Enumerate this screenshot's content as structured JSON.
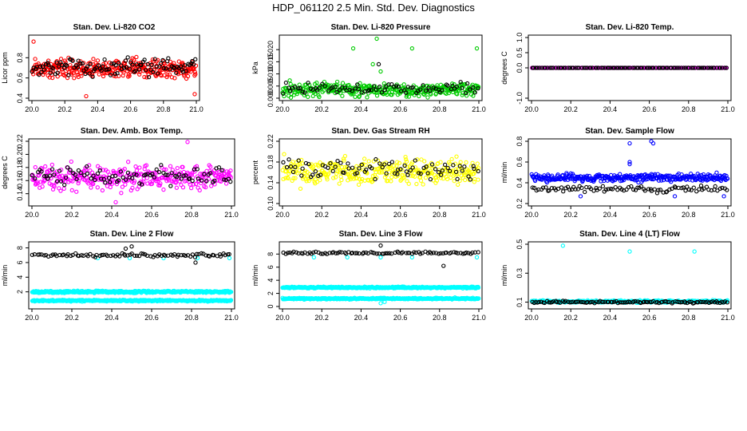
{
  "title": "HDP_061120  2.5 Min. Std. Dev. Diagnostics",
  "chart_data": [
    {
      "type": "scatter",
      "title": "Stan. Dev. Li-820 CO2",
      "ylabel": "Licor ppm",
      "xlim": [
        20.0,
        21.0
      ],
      "ylim": [
        0.4,
        1.0
      ],
      "x_ticks": [
        "20.0",
        "20.2",
        "20.4",
        "20.6",
        "20.8",
        "21.0"
      ],
      "y_ticks": [
        {
          "v": 0.4,
          "label": "0.4"
        },
        {
          "v": 0.6,
          "label": "0.6"
        },
        {
          "v": 0.8,
          "label": "0.8"
        }
      ],
      "series": [
        {
          "name": "red",
          "color": "#ff0000",
          "center": 0.69,
          "spread": 0.1,
          "n": 340,
          "seed": 11,
          "outliers": [
            [
              20.01,
              0.96
            ],
            [
              20.33,
              0.42
            ],
            [
              20.99,
              0.44
            ]
          ]
        },
        {
          "name": "black",
          "color": "#000000",
          "center": 0.72,
          "spread": 0.09,
          "n": 110,
          "seed": 12,
          "outliers": []
        }
      ]
    },
    {
      "type": "scatter",
      "title": "Stan. Dev. Li-820 Pressure",
      "ylabel": "kPa",
      "xlim": [
        20.0,
        21.0
      ],
      "ylim": [
        0.0,
        0.025
      ],
      "x_ticks": [
        "20.0",
        "20.2",
        "20.4",
        "20.6",
        "20.8",
        "21.0"
      ],
      "y_ticks": [
        {
          "v": 0.0,
          "label": "0.000"
        },
        {
          "v": 0.005,
          "label": "0.005"
        },
        {
          "v": 0.01,
          "label": "0.010"
        },
        {
          "v": 0.015,
          "label": "0.015"
        },
        {
          "v": 0.02,
          "label": "0.020"
        }
      ],
      "series": [
        {
          "name": "green",
          "color": "#00cc00",
          "center": 0.0035,
          "spread": 0.003,
          "n": 330,
          "seed": 21,
          "outliers": [
            [
              20.36,
              0.0205
            ],
            [
              20.48,
              0.0245
            ],
            [
              20.66,
              0.0205
            ],
            [
              20.99,
              0.0205
            ],
            [
              20.46,
              0.014
            ],
            [
              20.5,
              0.011
            ]
          ]
        },
        {
          "name": "black",
          "color": "#000000",
          "center": 0.004,
          "spread": 0.0025,
          "n": 80,
          "seed": 22,
          "outliers": [
            [
              20.49,
              0.014
            ]
          ]
        }
      ]
    },
    {
      "type": "scatter",
      "title": "Stan. Dev. Li-820 Temp.",
      "ylabel": "degrees C",
      "xlim": [
        20.0,
        21.0
      ],
      "ylim": [
        -1.0,
        1.0
      ],
      "x_ticks": [
        "20.0",
        "20.2",
        "20.4",
        "20.6",
        "20.8",
        "21.0"
      ],
      "y_ticks": [
        {
          "v": -1.0,
          "label": "-1.0"
        },
        {
          "v": 0.0,
          "label": "0.0"
        },
        {
          "v": 0.5,
          "label": "0.5"
        },
        {
          "v": 1.0,
          "label": "1.0"
        }
      ],
      "series": [
        {
          "name": "magenta",
          "color": "#ff00ff",
          "center": 0.0,
          "spread": 0.0,
          "n": 150,
          "seed": 31,
          "outliers": []
        },
        {
          "name": "black",
          "color": "#000000",
          "center": 0.0,
          "spread": 0.0,
          "n": 100,
          "seed": 32,
          "outliers": []
        }
      ]
    },
    {
      "type": "scatter",
      "title": "Stan. Dev. Amb. Box Temp.",
      "ylabel": "degrees C",
      "xlim": [
        20.0,
        21.0
      ],
      "ylim": [
        0.125,
        0.22
      ],
      "x_ticks": [
        "20.0",
        "20.2",
        "20.4",
        "20.6",
        "20.8",
        "21.0"
      ],
      "y_ticks": [
        {
          "v": 0.14,
          "label": "0.14"
        },
        {
          "v": 0.16,
          "label": "0.16"
        },
        {
          "v": 0.18,
          "label": "0.18"
        },
        {
          "v": 0.2,
          "label": "0.20"
        },
        {
          "v": 0.22,
          "label": "0.22"
        }
      ],
      "series": [
        {
          "name": "magenta",
          "color": "#ff00ff",
          "center": 0.165,
          "spread": 0.02,
          "n": 330,
          "seed": 41,
          "outliers": [
            [
              20.78,
              0.219
            ],
            [
              20.42,
              0.127
            ]
          ]
        },
        {
          "name": "black",
          "color": "#000000",
          "center": 0.168,
          "spread": 0.017,
          "n": 90,
          "seed": 42,
          "outliers": []
        }
      ]
    },
    {
      "type": "scatter",
      "title": "Stan. Dev. Gas Stream RH",
      "ylabel": "percent",
      "xlim": [
        20.0,
        21.0
      ],
      "ylim": [
        0.1,
        0.22
      ],
      "x_ticks": [
        "20.0",
        "20.2",
        "20.4",
        "20.6",
        "20.8",
        "21.0"
      ],
      "y_ticks": [
        {
          "v": 0.1,
          "label": "0.10"
        },
        {
          "v": 0.14,
          "label": "0.14"
        },
        {
          "v": 0.18,
          "label": "0.18"
        },
        {
          "v": 0.22,
          "label": "0.22"
        }
      ],
      "series": [
        {
          "name": "yellow",
          "color": "#ffff00",
          "center": 0.162,
          "spread": 0.025,
          "n": 330,
          "seed": 51,
          "outliers": []
        },
        {
          "name": "black",
          "color": "#000000",
          "center": 0.168,
          "spread": 0.02,
          "n": 80,
          "seed": 52,
          "outliers": []
        }
      ]
    },
    {
      "type": "scatter",
      "title": "Stan. Dev. Sample Flow",
      "ylabel": "ml/min",
      "xlim": [
        20.0,
        21.0
      ],
      "ylim": [
        0.2,
        0.8
      ],
      "x_ticks": [
        "20.0",
        "20.2",
        "20.4",
        "20.6",
        "20.8",
        "21.0"
      ],
      "y_ticks": [
        {
          "v": 0.2,
          "label": "0.2"
        },
        {
          "v": 0.4,
          "label": "0.4"
        },
        {
          "v": 0.6,
          "label": "0.6"
        },
        {
          "v": 0.8,
          "label": "0.8"
        }
      ],
      "series": [
        {
          "name": "blue",
          "color": "#0000ff",
          "center": 0.45,
          "spread": 0.04,
          "n": 330,
          "seed": 61,
          "outliers": [
            [
              20.5,
              0.78
            ],
            [
              20.62,
              0.78
            ],
            [
              20.61,
              0.8
            ],
            [
              20.25,
              0.27
            ],
            [
              20.73,
              0.27
            ],
            [
              20.98,
              0.27
            ],
            [
              20.5,
              0.6
            ],
            [
              20.5,
              0.58
            ]
          ]
        },
        {
          "name": "black",
          "color": "#000000",
          "center": 0.34,
          "spread": 0.03,
          "n": 90,
          "seed": 62,
          "outliers": []
        }
      ]
    },
    {
      "type": "scatter",
      "title": "Stan. Dev. Line 2 Flow",
      "ylabel": "ml/min",
      "xlim": [
        20.0,
        21.0
      ],
      "ylim": [
        0.0,
        8.5
      ],
      "x_ticks": [
        "20.0",
        "20.2",
        "20.4",
        "20.6",
        "20.8",
        "21.0"
      ],
      "y_ticks": [
        {
          "v": 2,
          "label": "2"
        },
        {
          "v": 4,
          "label": "4"
        },
        {
          "v": 6,
          "label": "6"
        },
        {
          "v": 8,
          "label": "8"
        }
      ],
      "series": [
        {
          "name": "cyan-high",
          "color": "#00ffff",
          "center": 2.0,
          "spread": 0.15,
          "n": 400,
          "seed": 71,
          "outliers": [
            [
              20.33,
              6.6
            ],
            [
              20.49,
              6.6
            ],
            [
              20.66,
              6.6
            ],
            [
              20.83,
              6.6
            ],
            [
              20.99,
              6.6
            ]
          ]
        },
        {
          "name": "cyan-low",
          "color": "#00ffff",
          "center": 0.8,
          "spread": 0.1,
          "n": 400,
          "seed": 72,
          "outliers": []
        },
        {
          "name": "black",
          "color": "#000000",
          "center": 7.0,
          "spread": 0.25,
          "n": 90,
          "seed": 73,
          "outliers": [
            [
              20.47,
              7.9
            ],
            [
              20.5,
              8.2
            ],
            [
              20.82,
              6.0
            ]
          ]
        }
      ]
    },
    {
      "type": "scatter",
      "title": "Stan. Dev. Line 3 Flow",
      "ylabel": "ml/min",
      "xlim": [
        20.0,
        21.0
      ],
      "ylim": [
        0.0,
        9.5
      ],
      "x_ticks": [
        "20.0",
        "20.2",
        "20.4",
        "20.6",
        "20.8",
        "21.0"
      ],
      "y_ticks": [
        {
          "v": 0,
          "label": "0"
        },
        {
          "v": 2,
          "label": "2"
        },
        {
          "v": 4,
          "label": "4"
        },
        {
          "v": 6,
          "label": "6"
        },
        {
          "v": 8,
          "label": "8"
        }
      ],
      "series": [
        {
          "name": "cyan-high",
          "color": "#00ffff",
          "center": 2.9,
          "spread": 0.12,
          "n": 400,
          "seed": 81,
          "outliers": [
            [
              20.16,
              7.5
            ],
            [
              20.33,
              7.5
            ],
            [
              20.5,
              7.5
            ],
            [
              20.66,
              7.5
            ],
            [
              20.99,
              7.5
            ]
          ]
        },
        {
          "name": "cyan-low",
          "color": "#00ffff",
          "center": 1.2,
          "spread": 0.12,
          "n": 400,
          "seed": 82,
          "outliers": [
            [
              20.5,
              0.5
            ],
            [
              20.52,
              0.7
            ]
          ]
        },
        {
          "name": "black",
          "color": "#000000",
          "center": 8.2,
          "spread": 0.2,
          "n": 90,
          "seed": 83,
          "outliers": [
            [
              20.5,
              9.3
            ],
            [
              20.82,
              6.2
            ]
          ]
        }
      ]
    },
    {
      "type": "scatter",
      "title": "Stan. Dev. Line 4 (LT) Flow",
      "ylabel": "ml/min",
      "xlim": [
        20.0,
        21.0
      ],
      "ylim": [
        0.07,
        0.5
      ],
      "x_ticks": [
        "20.0",
        "20.2",
        "20.4",
        "20.6",
        "20.8",
        "21.0"
      ],
      "y_ticks": [
        {
          "v": 0.1,
          "label": "0.1"
        },
        {
          "v": 0.3,
          "label": "0.3"
        },
        {
          "v": 0.5,
          "label": "0.5"
        }
      ],
      "series": [
        {
          "name": "cyan",
          "color": "#00ffff",
          "center": 0.105,
          "spread": 0.008,
          "n": 330,
          "seed": 91,
          "outliers": [
            [
              20.16,
              0.49
            ],
            [
              20.5,
              0.45
            ],
            [
              20.83,
              0.45
            ]
          ]
        },
        {
          "name": "black",
          "color": "#000000",
          "center": 0.1,
          "spread": 0.008,
          "n": 110,
          "seed": 92,
          "outliers": []
        }
      ]
    }
  ]
}
